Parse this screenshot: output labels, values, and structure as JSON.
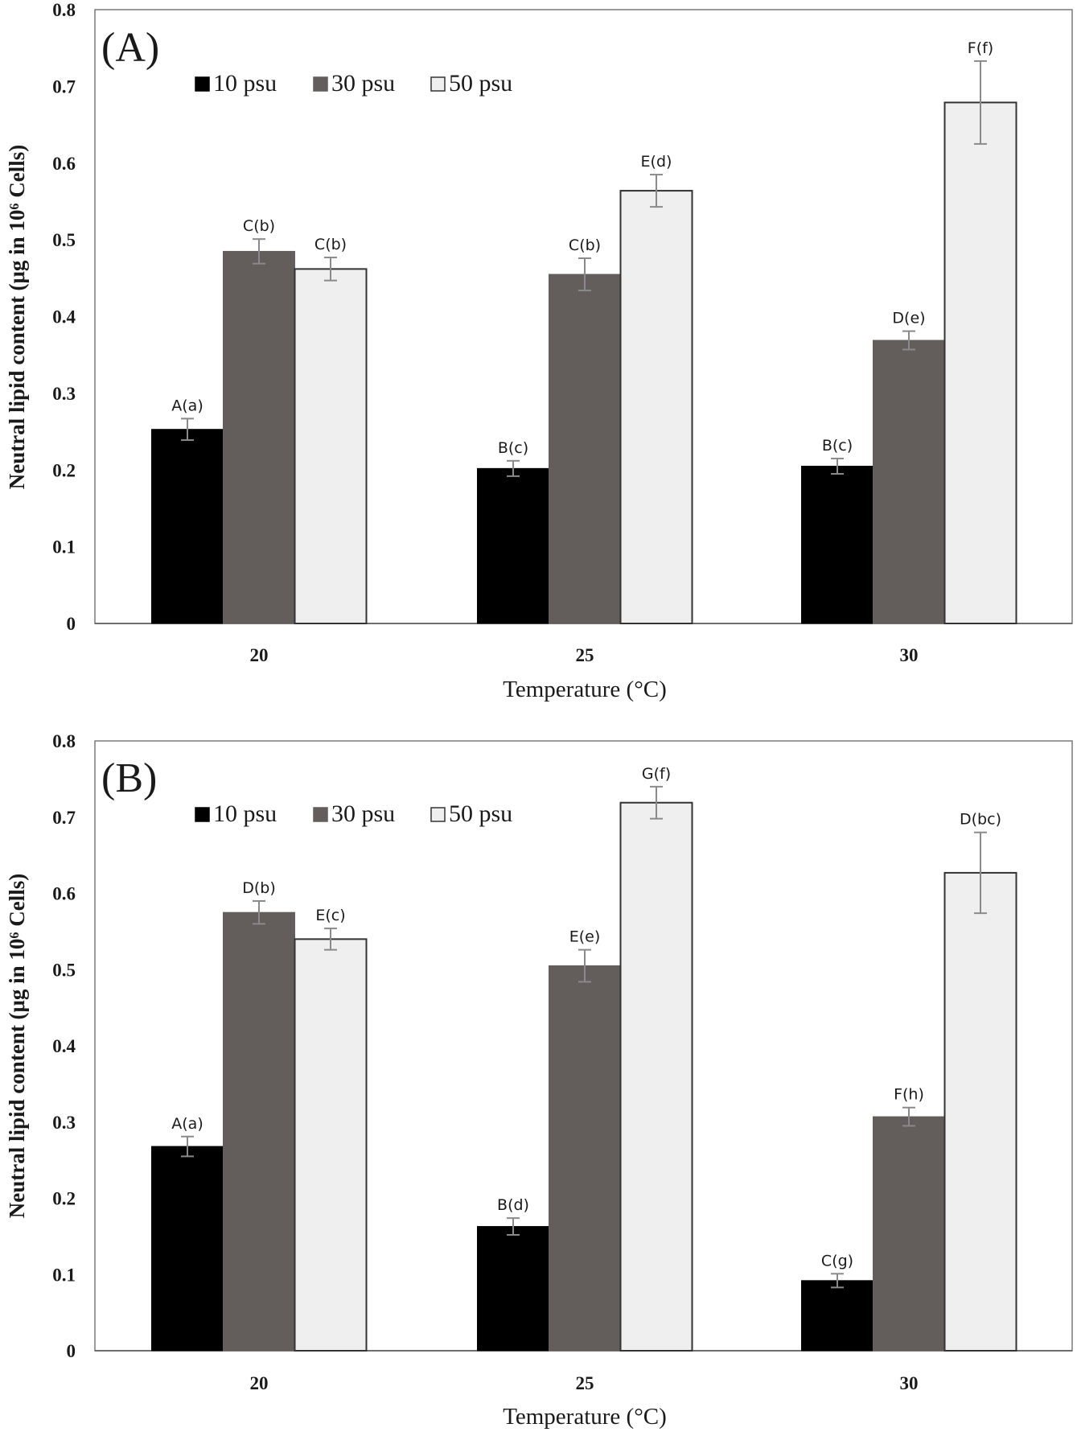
{
  "chart_data": [
    {
      "type": "bar",
      "panel_label": "(A)",
      "categories": [
        "20",
        "25",
        "30"
      ],
      "series": [
        {
          "name": "10 psu",
          "values": [
            0.253,
            0.202,
            0.205
          ],
          "errors": [
            0.014,
            0.01,
            0.01
          ],
          "labels": [
            "A(a)",
            "B(c)",
            "B(c)"
          ]
        },
        {
          "name": "30 psu",
          "values": [
            0.485,
            0.455,
            0.369
          ],
          "errors": [
            0.016,
            0.021,
            0.012
          ],
          "labels": [
            "C(b)",
            "C(b)",
            "D(e)"
          ]
        },
        {
          "name": "50 psu",
          "values": [
            0.462,
            0.564,
            0.679
          ],
          "errors": [
            0.015,
            0.021,
            0.054
          ],
          "labels": [
            "C(b)",
            "E(d)",
            "F(f)"
          ]
        }
      ],
      "colors": [
        "#000000",
        "#635d5b",
        "#efefef"
      ],
      "xlabel": "Temperature (°C)",
      "ylabel": "Neutral lipid content (μg in 10⁶ Cells)",
      "ylim": [
        0,
        0.8
      ],
      "yticks": [
        "0",
        "0.1",
        "0.2",
        "0.3",
        "0.4",
        "0.5",
        "0.6",
        "0.7",
        "0.8"
      ],
      "legend": "top-left"
    },
    {
      "type": "bar",
      "panel_label": "(B)",
      "categories": [
        "20",
        "25",
        "30"
      ],
      "series": [
        {
          "name": "10 psu",
          "values": [
            0.268,
            0.163,
            0.092
          ],
          "errors": [
            0.013,
            0.011,
            0.009
          ],
          "labels": [
            "A(a)",
            "B(d)",
            "C(g)"
          ]
        },
        {
          "name": "30 psu",
          "values": [
            0.575,
            0.505,
            0.307
          ],
          "errors": [
            0.015,
            0.021,
            0.012
          ],
          "labels": [
            "D(b)",
            "E(e)",
            "F(h)"
          ]
        },
        {
          "name": "50 psu",
          "values": [
            0.54,
            0.719,
            0.627
          ],
          "errors": [
            0.014,
            0.021,
            0.053
          ],
          "labels": [
            "E(c)",
            "G(f)",
            "D(bc)"
          ]
        }
      ],
      "colors": [
        "#000000",
        "#635d5b",
        "#efefef"
      ],
      "xlabel": "Temperature (°C)",
      "ylabel": "Neutral lipid content (μg in 10⁶ Cells)",
      "ylim": [
        0,
        0.8
      ],
      "yticks": [
        "0",
        "0.1",
        "0.2",
        "0.3",
        "0.4",
        "0.5",
        "0.6",
        "0.7",
        "0.8"
      ],
      "legend": "top-left"
    }
  ]
}
